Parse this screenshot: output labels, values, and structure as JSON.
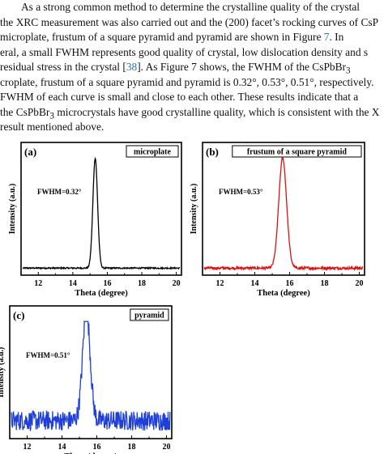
{
  "paragraph": {
    "lines": [
      {
        "pre": "As a strong common method to determine the crystalline quality of the crystal",
        "ref": "",
        "post": ""
      },
      {
        "pre": "the XRC measurement was also carried out and the (200) facet’s rocking curves of CsP",
        "ref": "",
        "post": ""
      },
      {
        "pre": "microplate, frustum of a square pyramid and pyramid are shown in Figure ",
        "ref": "7",
        "post": ".  In"
      },
      {
        "pre": "eral, a small FWHM represents good quality of crystal, low dislocation density and s",
        "ref": "",
        "post": ""
      },
      {
        "pre": "residual stress in the crystal [",
        "ref": "38",
        "post": "].  As Figure 7 shows, the FWHM of the CsPbBr"
      },
      {
        "pre": "croplate, frustum of a square pyramid and pyramid is 0.32°, 0.53°, 0.51°, respectively.",
        "ref": "",
        "post": ""
      },
      {
        "pre": "FWHM of each curve is small and close to each other.  These results indicate that a",
        "ref": "",
        "post": ""
      },
      {
        "pre": "the CsPbBr",
        "ref": "",
        "post": " microcrystals have good crystalline quality, which is consistent with the X"
      },
      {
        "pre": "result mentioned above.",
        "ref": "",
        "post": ""
      }
    ],
    "subscript": "3",
    "ref_figure": "7"
  },
  "chart_data": [
    {
      "type": "line",
      "panel": "(a)",
      "legend": "microplate",
      "annotation": "FWHM=0.32°",
      "xlabel": "Theta (degree)",
      "ylabel": "Intensity (a.u.)",
      "xlim": [
        11,
        20.3
      ],
      "xticks": [
        12,
        14,
        16,
        18,
        20
      ],
      "color": "#000000",
      "peak_center": 15.3,
      "fwhm": 0.32,
      "noise": 0.006,
      "baseline": 0.02
    },
    {
      "type": "line",
      "panel": "(b)",
      "legend": "frustum of a square pyramid",
      "annotation": "FWHM=0.53°",
      "xlabel": "Theta (degree)",
      "ylabel": "Intensity (a.u.)",
      "xlim": [
        11,
        20.3
      ],
      "xticks": [
        12,
        14,
        16,
        18,
        20
      ],
      "color": "#e01010",
      "peak_center": 15.6,
      "fwhm": 0.53,
      "noise": 0.012,
      "baseline": 0.02
    },
    {
      "type": "line",
      "panel": "(c)",
      "legend": "pyramid",
      "annotation": "FWHM=0.51°",
      "xlabel": "Theta (degree)",
      "ylabel": "Intensity (a.u.)",
      "xlim": [
        11,
        20.3
      ],
      "xticks": [
        12,
        14,
        16,
        18,
        20
      ],
      "color": "#1f3fd6",
      "peak_center": 15.4,
      "fwhm": 0.51,
      "noise": 0.09,
      "baseline": 0.12
    }
  ]
}
